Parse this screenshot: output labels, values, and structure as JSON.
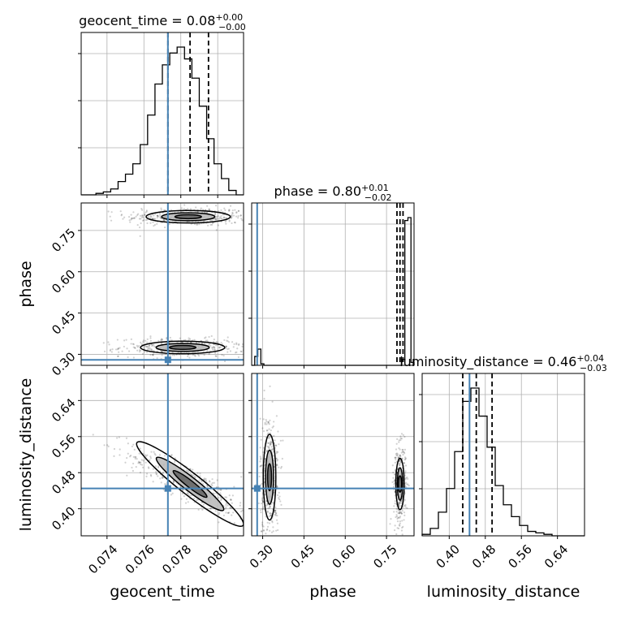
{
  "chart_data": {
    "type": "corner",
    "colors": {
      "truth": "#4682b4",
      "hist": "#000000",
      "grid": "#b0b0b0",
      "samples": "#000000"
    },
    "truths": {
      "geocent_time": 0.0773,
      "phase": 0.28,
      "luminosity_distance": 0.445
    },
    "parameters": [
      {
        "key": "geocent_time",
        "label": "geocent_time",
        "title": "geocent_time = 0.08",
        "title_sup": "+0.00",
        "title_sub": "−0.00",
        "range": [
          0.0726,
          0.0814
        ],
        "ticks": [
          0.074,
          0.076,
          0.078,
          0.08
        ],
        "tick_labels": [
          "0.074",
          "0.076",
          "0.078",
          "0.080"
        ],
        "quantiles": [
          0.0773,
          0.0785,
          0.0795
        ],
        "hist_counts": [
          0,
          0,
          1,
          2,
          4,
          9,
          14,
          21,
          34,
          54,
          75,
          88,
          96,
          100,
          92,
          79,
          60,
          38,
          21,
          11,
          3,
          0
        ]
      },
      {
        "key": "phase",
        "label": "phase",
        "title": "phase = 0.80",
        "title_sup": "+0.01",
        "title_sub": "−0.02",
        "range": [
          0.26,
          0.85
        ],
        "ticks": [
          0.3,
          0.45,
          0.6,
          0.75
        ],
        "tick_labels": [
          "0.30",
          "0.45",
          "0.60",
          "0.75"
        ],
        "quantiles": [
          0.788,
          0.799,
          0.81
        ],
        "hist_counts": [
          0,
          6,
          11,
          1,
          0,
          0,
          0,
          0,
          0,
          0,
          0,
          0,
          0,
          0,
          0,
          0,
          0,
          0,
          0,
          0,
          0,
          0,
          0,
          0,
          0,
          0,
          0,
          0,
          0,
          0,
          0,
          0,
          0,
          0,
          0,
          0,
          0,
          0,
          0,
          0,
          0,
          0,
          0,
          0,
          0,
          0,
          0,
          0,
          0,
          4,
          98,
          100,
          2
        ]
      },
      {
        "key": "luminosity_distance",
        "label": "luminosity_distance",
        "title": "luminosity_distance = 0.46",
        "title_sup": "+0.04",
        "title_sub": "−0.03",
        "range": [
          0.34,
          0.7
        ],
        "ticks": [
          0.4,
          0.48,
          0.56,
          0.64
        ],
        "tick_labels": [
          "0.40",
          "0.48",
          "0.56",
          "0.64"
        ],
        "quantiles": [
          0.43,
          0.46,
          0.495
        ],
        "hist_counts": [
          1,
          5,
          16,
          32,
          57,
          91,
          100,
          81,
          60,
          34,
          21,
          13,
          7,
          3,
          2,
          1,
          0,
          0,
          0,
          0
        ]
      }
    ],
    "pairs": [
      {
        "x": "geocent_time",
        "y": "phase",
        "clusters": [
          {
            "cx": 0.0784,
            "cy": 0.8,
            "sx": 0.0012,
            "sy": 0.012
          },
          {
            "cx": 0.0781,
            "cy": 0.325,
            "sx": 0.0012,
            "sy": 0.012
          }
        ]
      },
      {
        "x": "geocent_time",
        "y": "luminosity_distance",
        "clusters": [
          {
            "cx": 0.0785,
            "cy": 0.455,
            "sx": 0.0012,
            "sy": 0.028
          }
        ]
      },
      {
        "x": "phase",
        "y": "luminosity_distance",
        "clusters": [
          {
            "cx": 0.799,
            "cy": 0.455,
            "sx": 0.008,
            "sy": 0.03
          },
          {
            "cx": 0.325,
            "cy": 0.47,
            "sx": 0.012,
            "sy": 0.05
          }
        ]
      }
    ],
    "grid": true
  }
}
